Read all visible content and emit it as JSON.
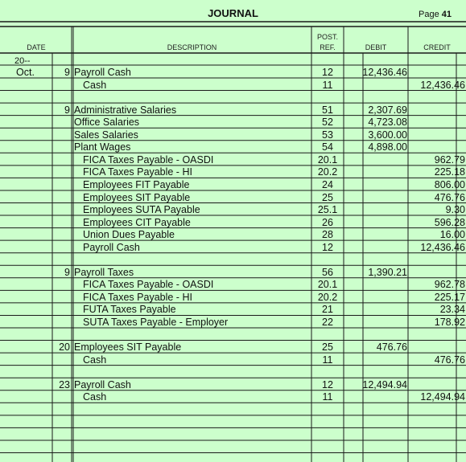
{
  "journal": {
    "title": "JOURNAL",
    "page_label": "Page",
    "page_number": "41",
    "headers": {
      "date": "DATE",
      "description": "DESCRIPTION",
      "post": "POST.",
      "ref": "REF.",
      "debit": "DEBIT",
      "credit": "CREDIT"
    },
    "year": "20--",
    "month": "Oct.",
    "rows": [
      {
        "day": "9",
        "desc": "Payroll Cash",
        "indent": 0,
        "ref": "12",
        "debit": "12,436.46",
        "credit": ""
      },
      {
        "day": "",
        "desc": "Cash",
        "indent": 1,
        "ref": "11",
        "debit": "",
        "credit": "12,436.46"
      },
      {
        "day": "",
        "desc": "",
        "indent": 0,
        "ref": "",
        "debit": "",
        "credit": ""
      },
      {
        "day": "9",
        "desc": "Administrative Salaries",
        "indent": 0,
        "ref": "51",
        "debit": "2,307.69",
        "credit": ""
      },
      {
        "day": "",
        "desc": "Office Salaries",
        "indent": 0,
        "ref": "52",
        "debit": "4,723.08",
        "credit": ""
      },
      {
        "day": "",
        "desc": "Sales Salaries",
        "indent": 0,
        "ref": "53",
        "debit": "3,600.00",
        "credit": ""
      },
      {
        "day": "",
        "desc": "Plant Wages",
        "indent": 0,
        "ref": "54",
        "debit": "4,898.00",
        "credit": ""
      },
      {
        "day": "",
        "desc": "FICA Taxes Payable - OASDI",
        "indent": 1,
        "ref": "20.1",
        "debit": "",
        "credit": "962.79"
      },
      {
        "day": "",
        "desc": "FICA Taxes Payable - HI",
        "indent": 1,
        "ref": "20.2",
        "debit": "",
        "credit": "225.18"
      },
      {
        "day": "",
        "desc": "Employees FIT Payable",
        "indent": 1,
        "ref": "24",
        "debit": "",
        "credit": "806.00"
      },
      {
        "day": "",
        "desc": "Employees SIT Payable",
        "indent": 1,
        "ref": "25",
        "debit": "",
        "credit": "476.76"
      },
      {
        "day": "",
        "desc": "Employees SUTA Payable",
        "indent": 1,
        "ref": "25.1",
        "debit": "",
        "credit": "9.30"
      },
      {
        "day": "",
        "desc": "Employees CIT Payable",
        "indent": 1,
        "ref": "26",
        "debit": "",
        "credit": "596.28"
      },
      {
        "day": "",
        "desc": "Union Dues Payable",
        "indent": 1,
        "ref": "28",
        "debit": "",
        "credit": "16.00"
      },
      {
        "day": "",
        "desc": "Payroll Cash",
        "indent": 1,
        "ref": "12",
        "debit": "",
        "credit": "12,436.46"
      },
      {
        "day": "",
        "desc": "",
        "indent": 0,
        "ref": "",
        "debit": "",
        "credit": ""
      },
      {
        "day": "9",
        "desc": "Payroll Taxes",
        "indent": 0,
        "ref": "56",
        "debit": "1,390.21",
        "credit": ""
      },
      {
        "day": "",
        "desc": "FICA Taxes Payable - OASDI",
        "indent": 1,
        "ref": "20.1",
        "debit": "",
        "credit": "962.78"
      },
      {
        "day": "",
        "desc": "FICA Taxes Payable - HI",
        "indent": 1,
        "ref": "20.2",
        "debit": "",
        "credit": "225.17"
      },
      {
        "day": "",
        "desc": "FUTA Taxes Payable",
        "indent": 1,
        "ref": "21",
        "debit": "",
        "credit": "23.34"
      },
      {
        "day": "",
        "desc": "SUTA Taxes Payable - Employer",
        "indent": 1,
        "ref": "22",
        "debit": "",
        "credit": "178.92"
      },
      {
        "day": "",
        "desc": "",
        "indent": 0,
        "ref": "",
        "debit": "",
        "credit": ""
      },
      {
        "day": "20",
        "desc": "Employees SIT Payable",
        "indent": 0,
        "ref": "25",
        "debit": "476.76",
        "credit": ""
      },
      {
        "day": "",
        "desc": "Cash",
        "indent": 1,
        "ref": "11",
        "debit": "",
        "credit": "476.76"
      },
      {
        "day": "",
        "desc": "",
        "indent": 0,
        "ref": "",
        "debit": "",
        "credit": ""
      },
      {
        "day": "23",
        "desc": "Payroll Cash",
        "indent": 0,
        "ref": "12",
        "debit": "12,494.94",
        "credit": ""
      },
      {
        "day": "",
        "desc": "Cash",
        "indent": 1,
        "ref": "11",
        "debit": "",
        "credit": "12,494.94"
      },
      {
        "day": "",
        "desc": "",
        "indent": 0,
        "ref": "",
        "debit": "",
        "credit": ""
      },
      {
        "day": "",
        "desc": "",
        "indent": 0,
        "ref": "",
        "debit": "",
        "credit": ""
      },
      {
        "day": "",
        "desc": "",
        "indent": 0,
        "ref": "",
        "debit": "",
        "credit": ""
      },
      {
        "day": "",
        "desc": "",
        "indent": 0,
        "ref": "",
        "debit": "",
        "credit": ""
      }
    ]
  }
}
